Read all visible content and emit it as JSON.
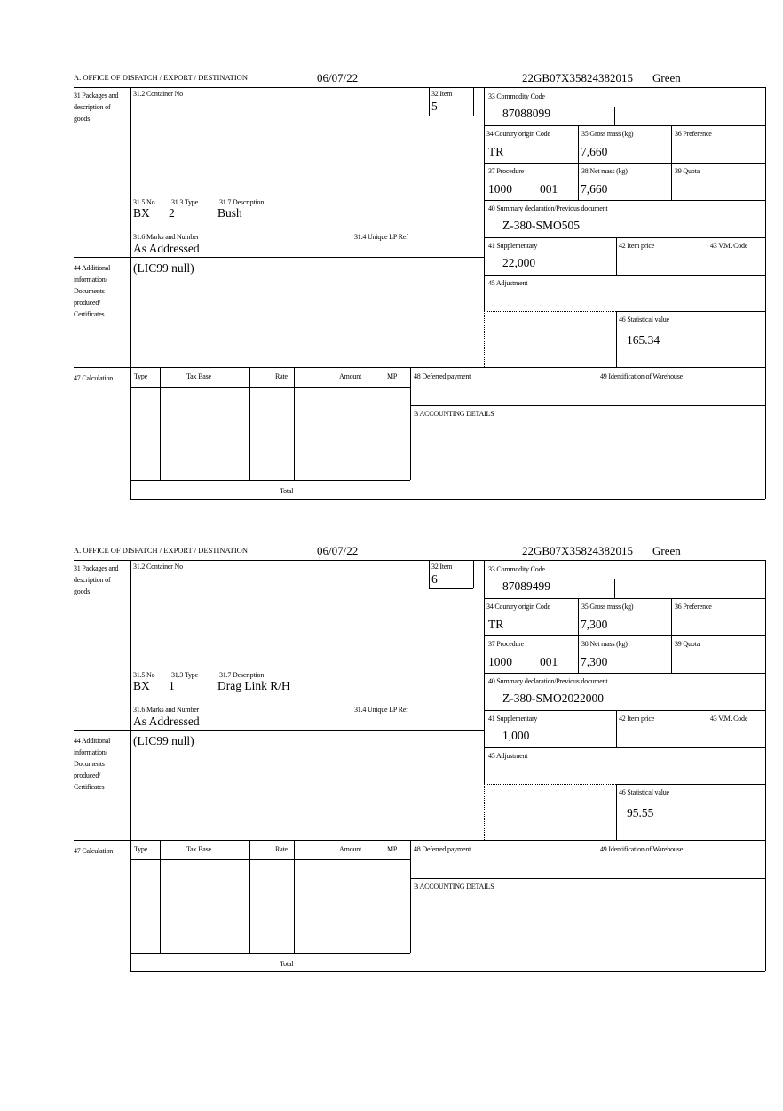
{
  "labels": {
    "office": "A.  OFFICE OF DISPATCH / EXPORT / DESTINATION",
    "packages": "31 Packages and description of goods",
    "container": "31.2 Container No",
    "item": "32 Item",
    "no": "31.5 No",
    "type": "31.3 Type",
    "description": "31.7 Description",
    "marks": "31.6 Marks and Number",
    "unique_ref": "31.4 Unique LP Ref",
    "commodity": "33 Commodity Code",
    "country": "34 Country origin Code",
    "gross": "35 Gross mass (kg)",
    "preference": "36 Preference",
    "procedure": "37 Procedure",
    "net": "38 Net mass (kg)",
    "quota": "39 Quota",
    "summary": "40 Summary declaration/Previous document",
    "supplementary": "41 Supplementary",
    "item_price": "42 Item price",
    "vm_code": "43 V.M. Code",
    "additional": "44 Additional information/ Documents produced/ Certificates",
    "adjustment": "45 Adjustment",
    "statistical": "46 Statistical value",
    "calculation": "47 Calculation",
    "calc_type": "Type",
    "calc_tax_base": "Tax Base",
    "calc_rate": "Rate",
    "calc_amount": "Amount",
    "calc_mp": "MP",
    "deferred": "48 Deferred payment",
    "warehouse": "49 Identification of Warehouse",
    "accounting": "B ACCOUNTING DETAILS",
    "total": "Total"
  },
  "forms": [
    {
      "date": "06/07/22",
      "mrn": "22GB07X35824382015",
      "status": "Green",
      "item": "5",
      "no": "BX",
      "type": "2",
      "description": "Bush",
      "marks": "As Addressed",
      "commodity": "87088099",
      "country": "TR",
      "gross": "7,660",
      "procedure": "1000",
      "procedure_extra": "001",
      "net": "7,660",
      "summary": "Z-380-SMO505",
      "supplementary": "22,000",
      "additional": "(LIC99 null)",
      "statistical": "165.34"
    },
    {
      "date": "06/07/22",
      "mrn": "22GB07X35824382015",
      "status": "Green",
      "item": "6",
      "no": "BX",
      "type": "1",
      "description": "Drag Link R/H",
      "marks": "As Addressed",
      "commodity": "87089499",
      "country": "TR",
      "gross": "7,300",
      "procedure": "1000",
      "procedure_extra": "001",
      "net": "7,300",
      "summary": "Z-380-SMO2022000",
      "supplementary": "1,000",
      "additional": "(LIC99 null)",
      "statistical": "95.55"
    }
  ]
}
